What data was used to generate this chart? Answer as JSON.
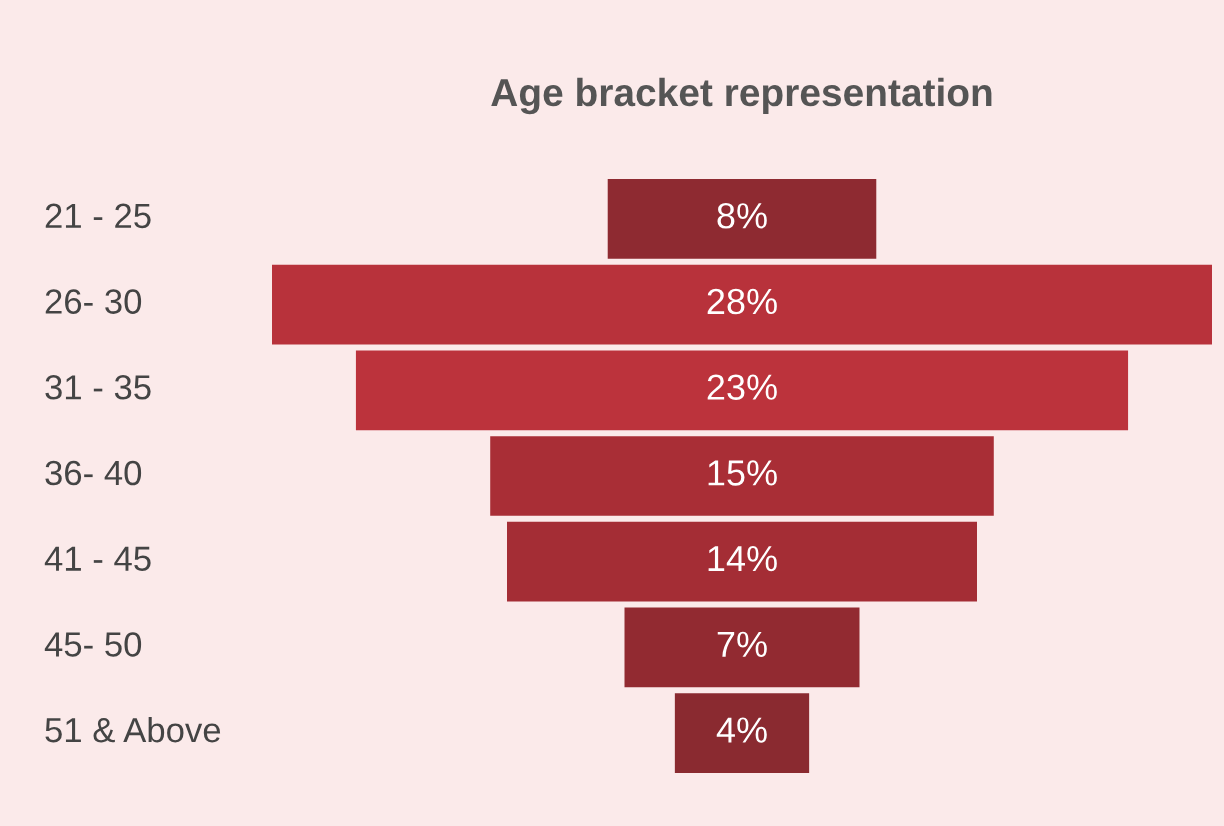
{
  "chart_data": {
    "type": "other",
    "title": "Age bracket representation",
    "categories": [
      "21 - 25",
      "26- 30",
      "31 - 35",
      "36- 40",
      "41 - 45",
      "45- 50",
      "51 & Above"
    ],
    "values": [
      8,
      28,
      23,
      15,
      14,
      7,
      4
    ],
    "colors": [
      "#8e2a31",
      "#b8323b",
      "#bc333c",
      "#a92e36",
      "#a42d35",
      "#922a31",
      "#8a2a30"
    ],
    "value_labels": [
      "8%",
      "28%",
      "23%",
      "15%",
      "14%",
      "7%",
      "4%"
    ]
  }
}
